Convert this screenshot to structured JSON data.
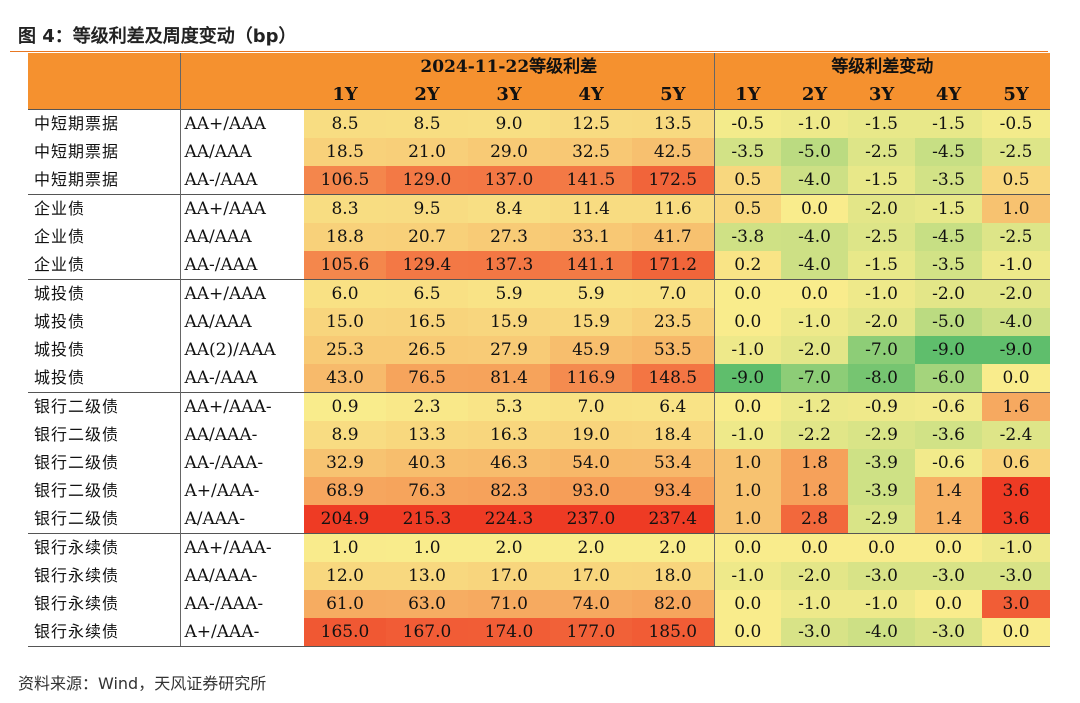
{
  "title": "图 4：等级利差及周度变动（bp）",
  "source": "资料来源：Wind，天风证券研究所",
  "header": {
    "group_left": "2024-11-22等级利差",
    "group_right": "等级利差变动",
    "cols": [
      "1Y",
      "2Y",
      "3Y",
      "4Y",
      "5Y"
    ]
  },
  "rows": [
    {
      "cat": "中短期票据",
      "rating": "AA+/AAA",
      "spread": [
        "8.5",
        "8.5",
        "9.0",
        "12.5",
        "13.5"
      ],
      "chg": [
        "-0.5",
        "-1.0",
        "-1.5",
        "-1.5",
        "-0.5"
      ]
    },
    {
      "cat": "中短期票据",
      "rating": "AA/AAA",
      "spread": [
        "18.5",
        "21.0",
        "29.0",
        "32.5",
        "42.5"
      ],
      "chg": [
        "-3.5",
        "-5.0",
        "-2.5",
        "-4.5",
        "-2.5"
      ]
    },
    {
      "cat": "中短期票据",
      "rating": "AA-/AAA",
      "spread": [
        "106.5",
        "129.0",
        "137.0",
        "141.5",
        "172.5"
      ],
      "chg": [
        "0.5",
        "-4.0",
        "-1.5",
        "-3.5",
        "0.5"
      ]
    },
    {
      "cat": "企业债",
      "rating": "AA+/AAA",
      "spread": [
        "8.3",
        "9.5",
        "8.4",
        "11.4",
        "11.6"
      ],
      "chg": [
        "0.5",
        "0.0",
        "-2.0",
        "-1.5",
        "1.0"
      ]
    },
    {
      "cat": "企业债",
      "rating": "AA/AAA",
      "spread": [
        "18.8",
        "20.7",
        "27.3",
        "33.1",
        "41.7"
      ],
      "chg": [
        "-3.8",
        "-4.0",
        "-2.5",
        "-4.5",
        "-2.5"
      ]
    },
    {
      "cat": "企业债",
      "rating": "AA-/AAA",
      "spread": [
        "105.6",
        "129.4",
        "137.3",
        "141.1",
        "171.2"
      ],
      "chg": [
        "0.2",
        "-4.0",
        "-1.5",
        "-3.5",
        "-1.0"
      ]
    },
    {
      "cat": "城投债",
      "rating": "AA+/AAA",
      "spread": [
        "6.0",
        "6.5",
        "5.9",
        "5.9",
        "7.0"
      ],
      "chg": [
        "0.0",
        "0.0",
        "-1.0",
        "-2.0",
        "-2.0"
      ]
    },
    {
      "cat": "城投债",
      "rating": "AA/AAA",
      "spread": [
        "15.0",
        "16.5",
        "15.9",
        "15.9",
        "23.5"
      ],
      "chg": [
        "0.0",
        "-1.0",
        "-2.0",
        "-5.0",
        "-4.0"
      ]
    },
    {
      "cat": "城投债",
      "rating": "AA(2)/AAA",
      "spread": [
        "25.3",
        "26.5",
        "27.9",
        "45.9",
        "53.5"
      ],
      "chg": [
        "-1.0",
        "-2.0",
        "-7.0",
        "-9.0",
        "-9.0"
      ]
    },
    {
      "cat": "城投债",
      "rating": "AA-/AAA",
      "spread": [
        "43.0",
        "76.5",
        "81.4",
        "116.9",
        "148.5"
      ],
      "chg": [
        "-9.0",
        "-7.0",
        "-8.0",
        "-6.0",
        "0.0"
      ]
    },
    {
      "cat": "银行二级债",
      "rating": "AA+/AAA-",
      "spread": [
        "0.9",
        "2.3",
        "5.3",
        "7.0",
        "6.4"
      ],
      "chg": [
        "0.0",
        "-1.2",
        "-0.9",
        "-0.6",
        "1.6"
      ]
    },
    {
      "cat": "银行二级债",
      "rating": "AA/AAA-",
      "spread": [
        "8.9",
        "13.3",
        "16.3",
        "19.0",
        "18.4"
      ],
      "chg": [
        "-1.0",
        "-2.2",
        "-2.9",
        "-3.6",
        "-2.4"
      ]
    },
    {
      "cat": "银行二级债",
      "rating": "AA-/AAA-",
      "spread": [
        "32.9",
        "40.3",
        "46.3",
        "54.0",
        "53.4"
      ],
      "chg": [
        "1.0",
        "1.8",
        "-3.9",
        "-0.6",
        "0.6"
      ]
    },
    {
      "cat": "银行二级债",
      "rating": "A+/AAA-",
      "spread": [
        "68.9",
        "76.3",
        "82.3",
        "93.0",
        "93.4"
      ],
      "chg": [
        "1.0",
        "1.8",
        "-3.9",
        "1.4",
        "3.6"
      ]
    },
    {
      "cat": "银行二级债",
      "rating": "A/AAA-",
      "spread": [
        "204.9",
        "215.3",
        "224.3",
        "237.0",
        "237.4"
      ],
      "chg": [
        "1.0",
        "2.8",
        "-2.9",
        "1.4",
        "3.6"
      ]
    },
    {
      "cat": "银行永续债",
      "rating": "AA+/AAA-",
      "spread": [
        "1.0",
        "1.0",
        "2.0",
        "2.0",
        "2.0"
      ],
      "chg": [
        "0.0",
        "0.0",
        "0.0",
        "0.0",
        "-1.0"
      ]
    },
    {
      "cat": "银行永续债",
      "rating": "AA/AAA-",
      "spread": [
        "12.0",
        "13.0",
        "17.0",
        "17.0",
        "18.0"
      ],
      "chg": [
        "-1.0",
        "-2.0",
        "-3.0",
        "-3.0",
        "-3.0"
      ]
    },
    {
      "cat": "银行永续债",
      "rating": "AA-/AAA-",
      "spread": [
        "61.0",
        "63.0",
        "71.0",
        "74.0",
        "82.0"
      ],
      "chg": [
        "0.0",
        "-1.0",
        "-1.0",
        "0.0",
        "3.0"
      ]
    },
    {
      "cat": "银行永续债",
      "rating": "A+/AAA-",
      "spread": [
        "165.0",
        "167.0",
        "174.0",
        "177.0",
        "185.0"
      ],
      "chg": [
        "0.0",
        "-3.0",
        "-4.0",
        "-3.0",
        "0.0"
      ]
    }
  ],
  "group_starts": [
    0,
    3,
    6,
    10,
    15
  ],
  "colors": {
    "header": "#f5912f",
    "rule": "#e87722",
    "low": "#f9ec8c",
    "mid": "#f6a15a",
    "high": "#ee3b24",
    "green_light": "#c7df84",
    "green_dark": "#5fbe6c"
  }
}
